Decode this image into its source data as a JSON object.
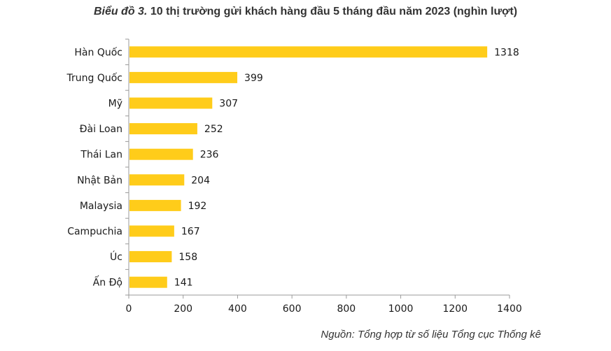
{
  "title": {
    "prefix": "Biểu đồ 3.",
    "text": "10 thị trường gửi khách hàng đầu 5 tháng đầu năm 2023 (nghìn lượt)"
  },
  "source": "Nguồn: Tổng hợp từ số liệu Tổng cục Thống kê",
  "colors": {
    "bar": "#FFCC1A",
    "axis": "#9a9a9a",
    "text": "#1a1a1a"
  },
  "chart_data": {
    "type": "bar",
    "orientation": "horizontal",
    "categories": [
      "Hàn Quốc",
      "Trung Quốc",
      "Mỹ",
      "Đài Loan",
      "Thái Lan",
      "Nhật Bản",
      "Malaysia",
      "Campuchia",
      "Úc",
      "Ấn Độ"
    ],
    "values": [
      1318,
      399,
      307,
      252,
      236,
      204,
      192,
      167,
      158,
      141
    ],
    "xlim": [
      0,
      1400
    ],
    "xticks": [
      0,
      200,
      400,
      600,
      800,
      1000,
      1200,
      1400
    ],
    "grid": false,
    "legend": "none",
    "data_labels": true
  }
}
